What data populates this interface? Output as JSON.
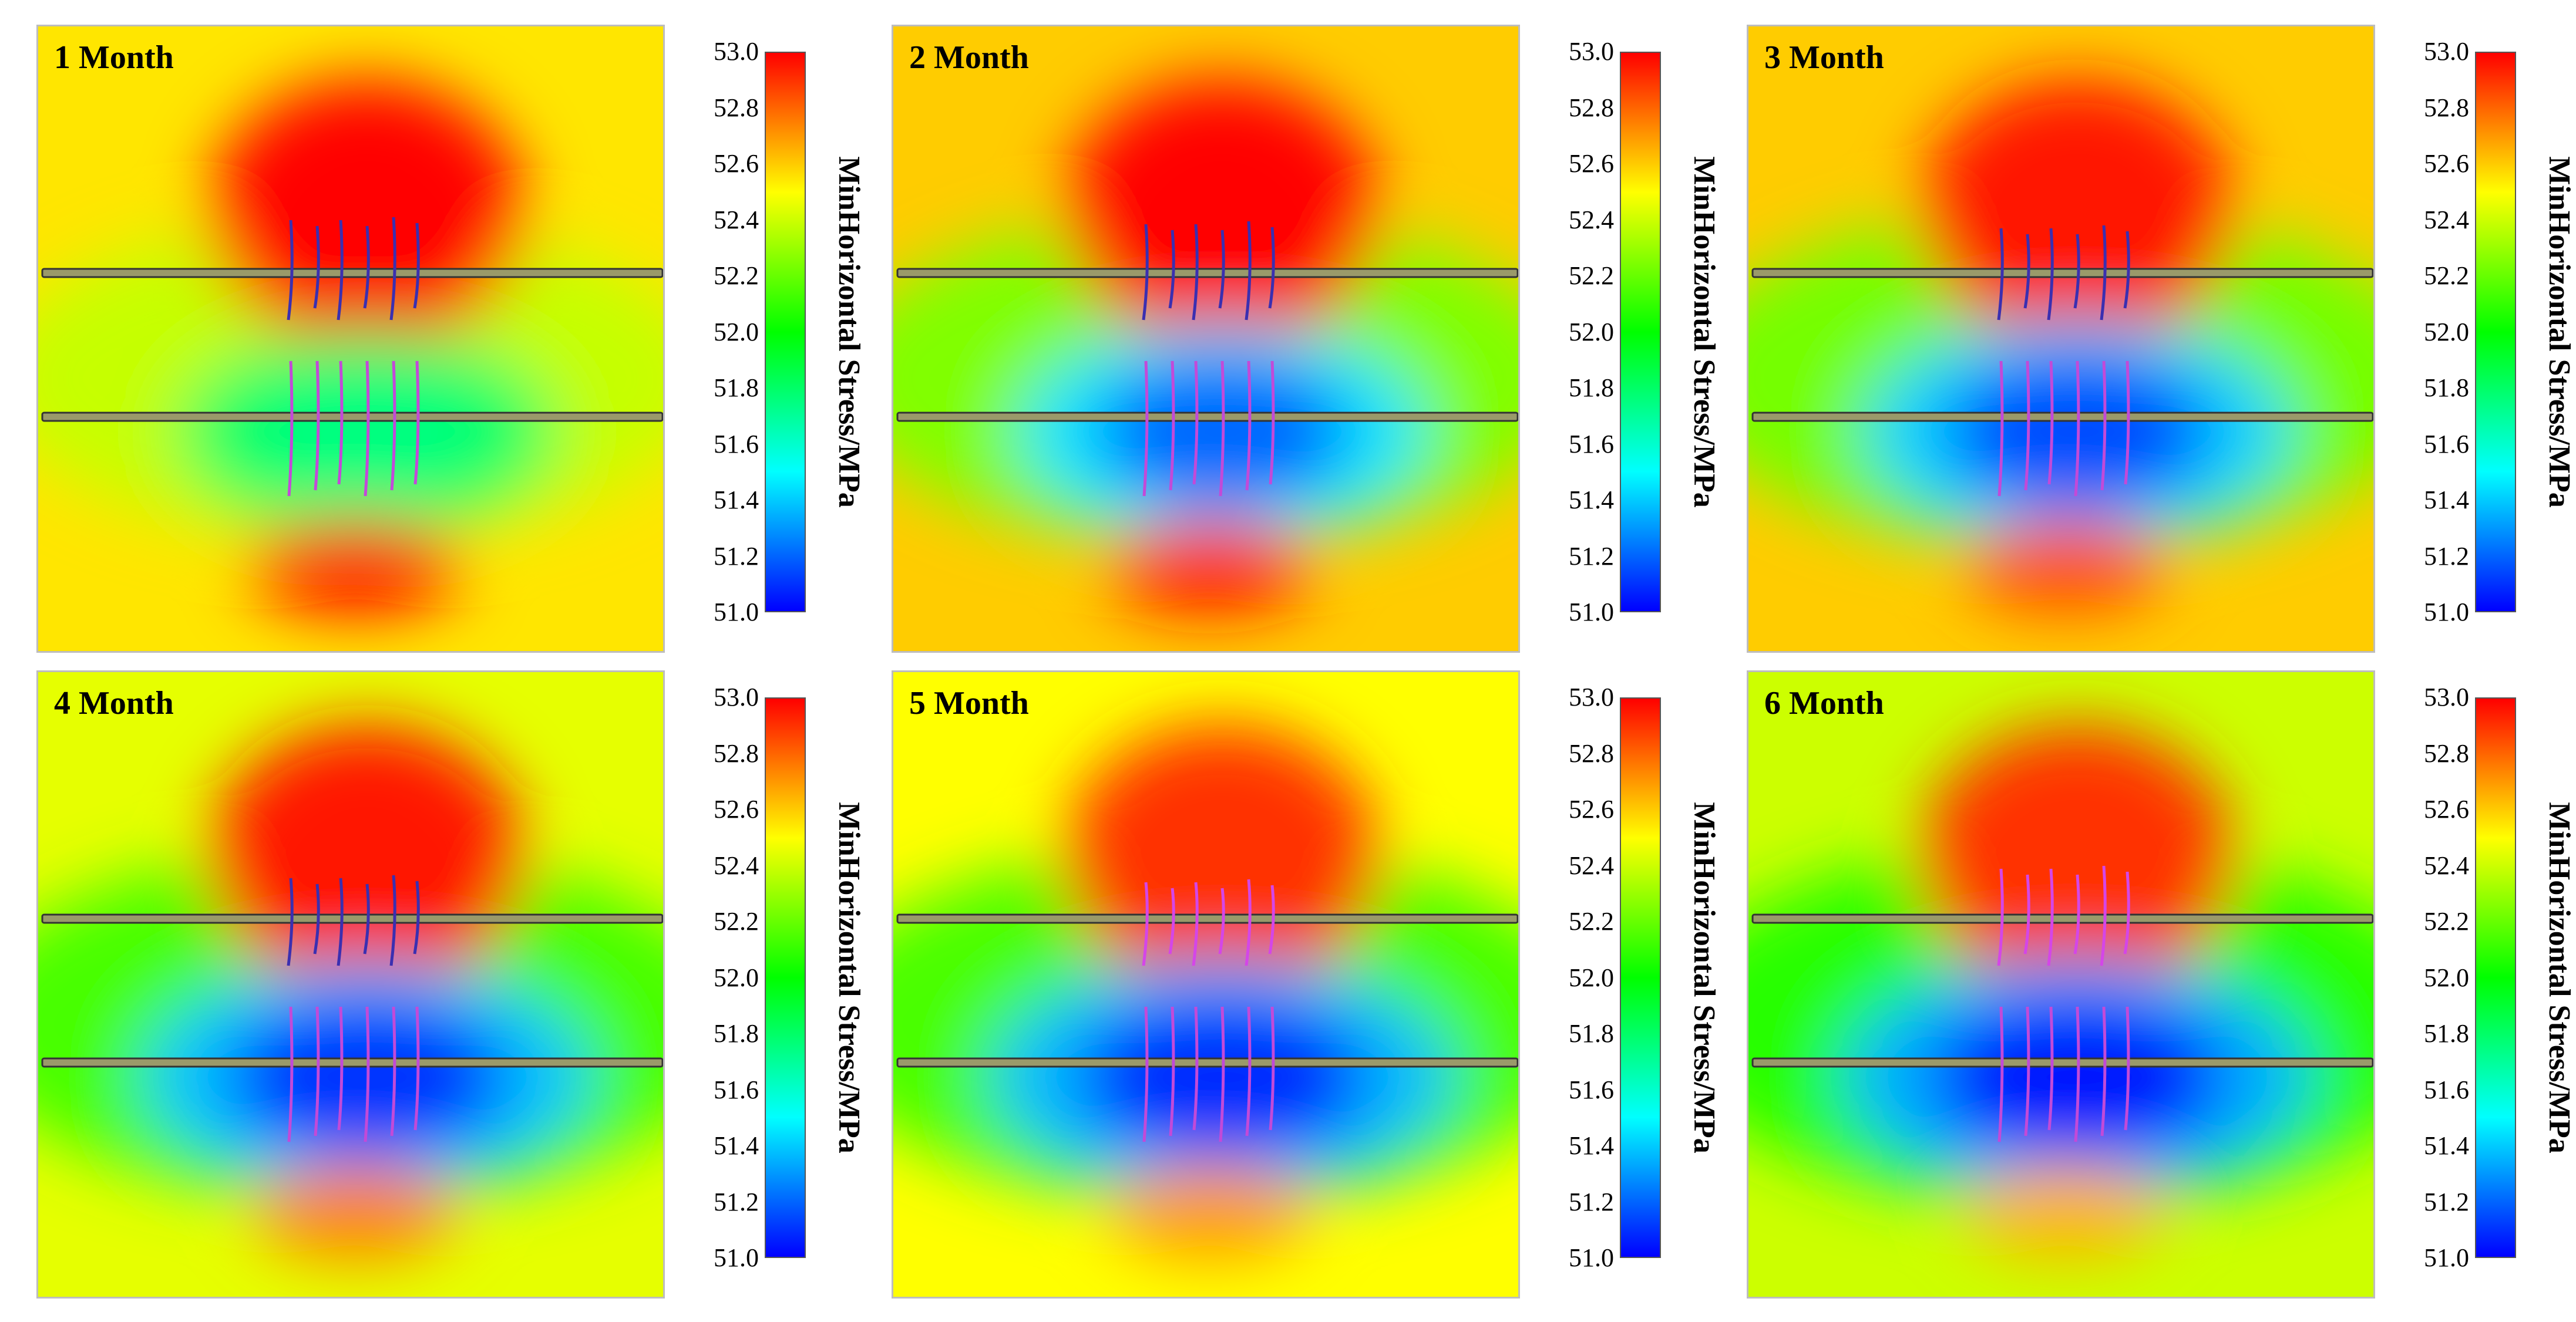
{
  "chart_data": {
    "type": "heatmap",
    "title": "",
    "colorbar": {
      "label": "MinHorizontal Stress/MPa",
      "min": 51.0,
      "max": 53.0,
      "ticks": [
        "53.0",
        "52.8",
        "52.6",
        "52.4",
        "52.2",
        "52.0",
        "51.8",
        "51.6",
        "51.4",
        "51.2",
        "51.0"
      ],
      "colormap": [
        "#0000ff",
        "#00ffff",
        "#00ff00",
        "#ffff00",
        "#ff0000"
      ]
    },
    "wells": 2,
    "fractures_per_well": 6,
    "panels": [
      {
        "label": "1 Month",
        "background_stress": 52.55,
        "upper_peak_stress": 53.0,
        "low_zone_stress": 51.75,
        "lower_peak_stress": 53.0,
        "depletion_extent": 0.55
      },
      {
        "label": "2 Month",
        "background_stress": 52.6,
        "upper_peak_stress": 53.0,
        "low_zone_stress": 51.2,
        "lower_peak_stress": 52.95,
        "depletion_extent": 0.7
      },
      {
        "label": "3 Month",
        "background_stress": 52.6,
        "upper_peak_stress": 52.95,
        "low_zone_stress": 51.15,
        "lower_peak_stress": 52.85,
        "depletion_extent": 0.8
      },
      {
        "label": "4 Month",
        "background_stress": 52.45,
        "upper_peak_stress": 52.95,
        "low_zone_stress": 51.1,
        "lower_peak_stress": 52.75,
        "depletion_extent": 0.9
      },
      {
        "label": "5 Month",
        "background_stress": 52.5,
        "upper_peak_stress": 52.9,
        "low_zone_stress": 51.08,
        "lower_peak_stress": 52.7,
        "depletion_extent": 0.97
      },
      {
        "label": "6 Month",
        "background_stress": 52.4,
        "upper_peak_stress": 52.9,
        "low_zone_stress": 51.05,
        "lower_peak_stress": 52.65,
        "depletion_extent": 1.0
      }
    ]
  }
}
